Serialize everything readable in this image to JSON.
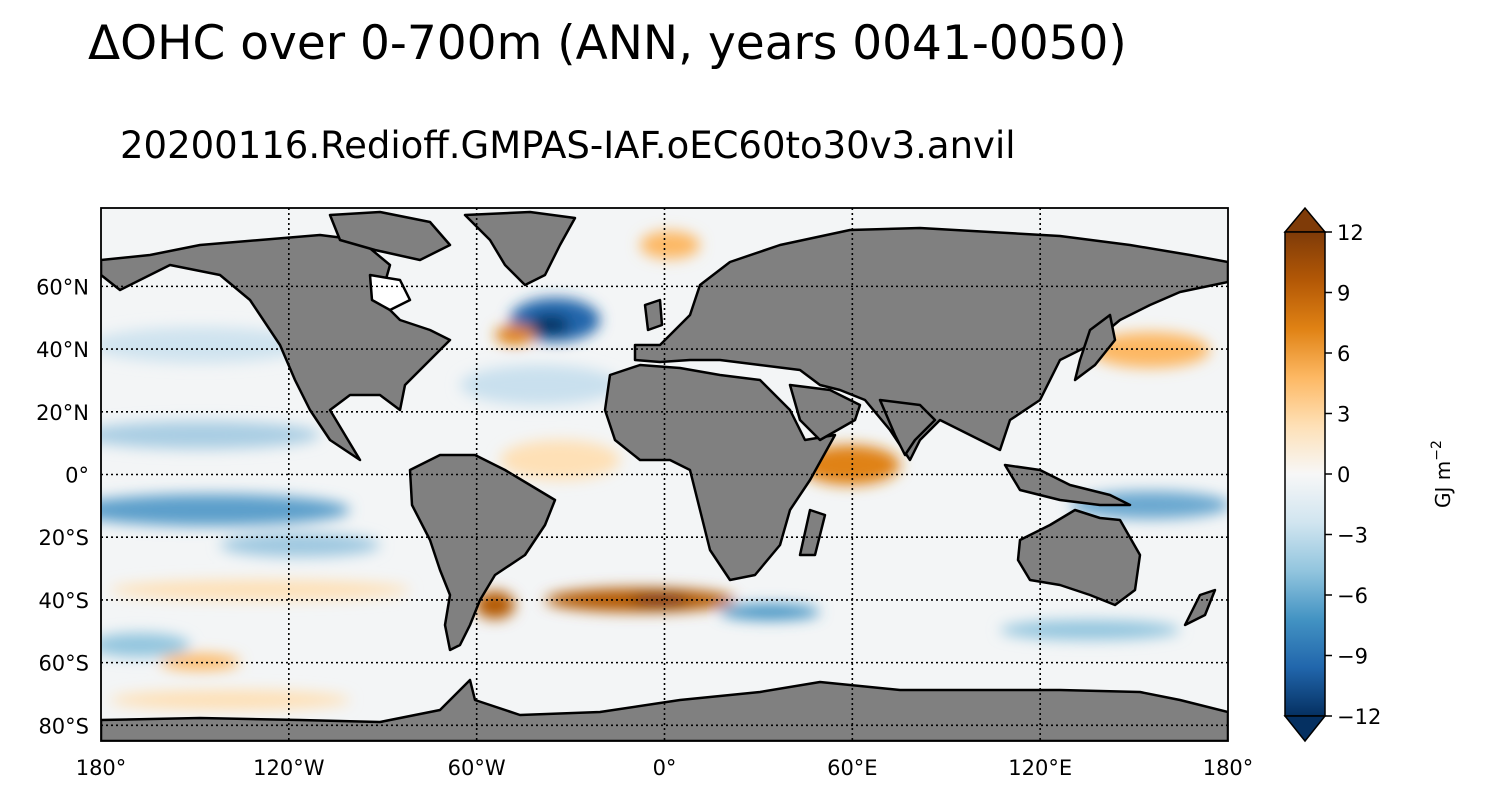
{
  "figure": {
    "title": "ΔOHC over 0-700m (ANN, years 0041-0050)",
    "subtitle": "20200116.Redioff.GMPAS-IAF.oEC60to30v3.anvil"
  },
  "map": {
    "projection": "PlateCarree",
    "lon_range": [
      -180,
      180
    ],
    "lat_range": [
      -85,
      85
    ],
    "x_ticks": [
      {
        "lon": -180,
        "label": "180°"
      },
      {
        "lon": -120,
        "label": "120°W"
      },
      {
        "lon": -60,
        "label": "60°W"
      },
      {
        "lon": 0,
        "label": "0°"
      },
      {
        "lon": 60,
        "label": "60°E"
      },
      {
        "lon": 120,
        "label": "120°E"
      },
      {
        "lon": 180,
        "label": "180°"
      }
    ],
    "y_ticks": [
      {
        "lat": 60,
        "label": "60°N"
      },
      {
        "lat": 40,
        "label": "40°N"
      },
      {
        "lat": 20,
        "label": "20°N"
      },
      {
        "lat": 0,
        "label": "0°"
      },
      {
        "lat": -20,
        "label": "20°S"
      },
      {
        "lat": -40,
        "label": "40°S"
      },
      {
        "lat": -60,
        "label": "60°S"
      },
      {
        "lat": -80,
        "label": "80°S"
      }
    ],
    "gridlines": "dotted",
    "land_color": "#808080",
    "coastline_color": "#000000",
    "features": [
      {
        "name": "labrador-sea-cooling",
        "lon": -42,
        "lat": 55,
        "value": -10
      },
      {
        "name": "gulf-stream-warming",
        "lon": -50,
        "lat": 43,
        "value": 6
      },
      {
        "name": "south-atlantic-warm-band",
        "lon": 0,
        "lat": -40,
        "value": 12
      },
      {
        "name": "brazil-malvinas-warming",
        "lon": -55,
        "lat": -42,
        "value": 9
      },
      {
        "name": "arabian-sea-warming",
        "lon": 60,
        "lat": 3,
        "value": 6
      },
      {
        "name": "kuroshio-warming",
        "lon": 150,
        "lat": 37,
        "value": 4
      },
      {
        "name": "pacific-cool-band",
        "lon": -150,
        "lat": -12,
        "value": -5
      },
      {
        "name": "indian-ocean-cool-band",
        "lon": 150,
        "lat": -12,
        "value": -5
      },
      {
        "name": "southern-ocean-cooling",
        "lon": 40,
        "lat": -45,
        "value": -5
      }
    ]
  },
  "colorbar": {
    "label_main": "GJ m",
    "label_exp": "−2",
    "vmin": -12,
    "vmax": 12,
    "ticks": [
      {
        "value": 12,
        "label": "12"
      },
      {
        "value": 9,
        "label": "9"
      },
      {
        "value": 6,
        "label": "6"
      },
      {
        "value": 3,
        "label": "3"
      },
      {
        "value": 0,
        "label": "0"
      },
      {
        "value": -3,
        "label": "−3"
      },
      {
        "value": -6,
        "label": "−6"
      },
      {
        "value": -9,
        "label": "−9"
      },
      {
        "value": -12,
        "label": "−12"
      }
    ],
    "colors": [
      "#053061",
      "#2166ac",
      "#4393c3",
      "#92c5de",
      "#d1e5f0",
      "#f7f7f7",
      "#fee0b6",
      "#fdb863",
      "#e08214",
      "#b35806",
      "#7f3b08"
    ],
    "extend": "both"
  }
}
